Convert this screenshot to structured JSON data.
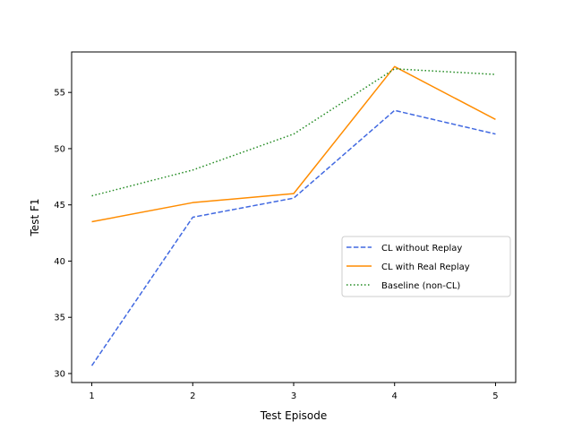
{
  "chart_data": {
    "type": "line",
    "title": "",
    "xlabel": "Test Episode",
    "ylabel": "Test F1",
    "x": [
      1,
      2,
      3,
      4,
      5
    ],
    "xlim": [
      0.8,
      5.2
    ],
    "ylim": [
      29.2,
      58.6
    ],
    "xticks": [
      1,
      2,
      3,
      4,
      5
    ],
    "yticks": [
      30,
      35,
      40,
      45,
      50,
      55
    ],
    "grid": false,
    "legend_position": "center-right",
    "series": [
      {
        "name": "CL without Replay",
        "values": [
          30.7,
          43.9,
          45.6,
          53.4,
          51.3
        ],
        "color": "#4169E1",
        "style": "dashed"
      },
      {
        "name": "CL with Real Replay",
        "values": [
          43.5,
          45.2,
          46.0,
          57.3,
          52.6
        ],
        "color": "#FF8C00",
        "style": "solid"
      },
      {
        "name": "Baseline (non-CL)",
        "values": [
          45.8,
          48.1,
          51.3,
          57.1,
          56.6
        ],
        "color": "#228B22",
        "style": "dotted"
      }
    ]
  }
}
